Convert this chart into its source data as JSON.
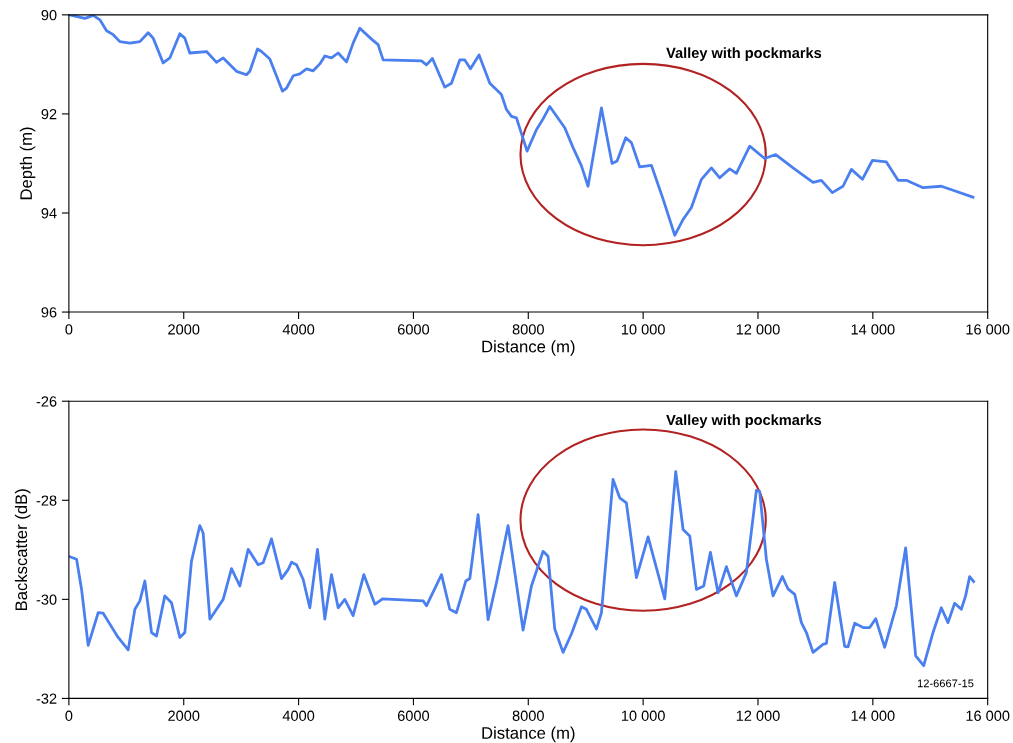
{
  "chart_data": [
    {
      "type": "line",
      "xlabel": "Distance (m)",
      "ylabel": "Depth (m)",
      "xlim": [
        0,
        16000
      ],
      "ylim": [
        96,
        90
      ],
      "xticks": [
        0,
        2000,
        4000,
        6000,
        8000,
        {
          "value": 10000,
          "label": "10 000"
        },
        {
          "value": 12000,
          "label": "12 000"
        },
        {
          "value": 14000,
          "label": "14 000"
        },
        {
          "value": 16000,
          "label": "16 000"
        }
      ],
      "yticks": [
        90,
        92,
        94,
        96
      ],
      "marker": "none",
      "line_style": "solid",
      "annotations": [
        "Valley with pockmarks"
      ],
      "series": [
        {
          "color": "#4a7ff0",
          "x": [
            17,
            279,
            423,
            540,
            656,
            772,
            888,
            1062,
            1236,
            1381,
            1468,
            1642,
            1758,
            1932,
            2019,
            2106,
            2397,
            2571,
            2687,
            2919,
            3093,
            3151,
            3285,
            3354,
            3499,
            3720,
            3790,
            3906,
            4022,
            4138,
            4254,
            4370,
            4457,
            4573,
            4689,
            4834,
            4950,
            5066,
            5270,
            5385,
            5472,
            6140,
            6227,
            6331,
            6546,
            6662,
            6807,
            6894,
            6993,
            7143,
            7330,
            7533,
            7620,
            7707,
            7794,
            7979,
            8142,
            8258,
            8374,
            8635,
            8780,
            8926,
            9041,
            9274,
            9459,
            9546,
            9697,
            9796,
            9941,
            10145,
            10348,
            10551,
            10696,
            10841,
            11015,
            11189,
            11334,
            11508,
            11624,
            11856,
            12117,
            12309,
            12611,
            12959,
            13104,
            13295,
            13481,
            13627,
            13818,
            13992,
            14236,
            14439,
            14584,
            14874,
            15193,
            15396,
            15744
          ],
          "values": [
            90.0,
            90.07,
            90.01,
            90.1,
            90.32,
            90.4,
            90.54,
            90.57,
            90.54,
            90.36,
            90.47,
            90.97,
            90.87,
            90.38,
            90.47,
            90.77,
            90.74,
            90.96,
            90.87,
            91.14,
            91.21,
            91.14,
            90.69,
            90.74,
            90.89,
            91.54,
            91.48,
            91.23,
            91.19,
            91.09,
            91.13,
            90.99,
            90.83,
            90.87,
            90.77,
            90.95,
            90.57,
            90.27,
            90.49,
            90.6,
            90.91,
            90.93,
            91.01,
            90.88,
            91.46,
            91.38,
            90.91,
            90.91,
            91.09,
            90.81,
            91.38,
            91.61,
            91.91,
            92.05,
            92.08,
            92.75,
            92.32,
            92.1,
            91.85,
            92.28,
            92.68,
            93.05,
            93.46,
            91.88,
            93.0,
            92.95,
            92.48,
            92.58,
            93.07,
            93.04,
            93.72,
            94.45,
            94.13,
            93.89,
            93.32,
            93.09,
            93.29,
            93.11,
            93.2,
            92.65,
            92.9,
            92.82,
            93.09,
            93.38,
            93.34,
            93.59,
            93.46,
            93.12,
            93.32,
            92.94,
            92.97,
            93.34,
            93.34,
            93.49,
            93.46,
            93.54,
            93.68
          ]
        }
      ]
    },
    {
      "type": "line",
      "xlabel": "Distance (m)",
      "ylabel": "Backscatter (dB)",
      "xlim": [
        0,
        16000
      ],
      "ylim": [
        -32,
        -26
      ],
      "xticks": [
        0,
        2000,
        4000,
        6000,
        8000,
        {
          "value": 10000,
          "label": "10 000"
        },
        {
          "value": 12000,
          "label": "12 000"
        },
        {
          "value": 14000,
          "label": "14 000"
        },
        {
          "value": 16000,
          "label": "16 000"
        }
      ],
      "yticks": [
        -32,
        -30,
        -28,
        -26
      ],
      "marker": "none",
      "line_style": "solid",
      "annotations": [
        "Valley with pockmarks",
        "12-6667-15"
      ],
      "series": [
        {
          "color": "#4a7ff0",
          "x": [
            17,
            134,
            221,
            336,
            510,
            597,
            714,
            858,
            1033,
            1149,
            1236,
            1323,
            1439,
            1526,
            1671,
            1787,
            1932,
            2019,
            2135,
            2280,
            2338,
            2455,
            2571,
            2687,
            2832,
            2977,
            3122,
            3296,
            3383,
            3528,
            3703,
            3818,
            3877,
            3964,
            4080,
            4196,
            4329,
            4457,
            4573,
            4689,
            4805,
            4950,
            5136,
            5328,
            5461,
            6169,
            6227,
            6489,
            6633,
            6749,
            6912,
            6982,
            7126,
            7300,
            7446,
            7648,
            7909,
            8055,
            8258,
            8345,
            8461,
            8606,
            8751,
            8926,
            9012,
            9187,
            9274,
            9476,
            9592,
            9708,
            9883,
            10086,
            10377,
            10568,
            10696,
            10812,
            10928,
            11055,
            11172,
            11305,
            11450,
            11624,
            11798,
            11972,
            12030,
            12146,
            12262,
            12425,
            12523,
            12640,
            12756,
            12843,
            12959,
            13133,
            13191,
            13336,
            13510,
            13568,
            13684,
            13829,
            13946,
            14050,
            14206,
            14410,
            14572,
            14746,
            14886,
            15048,
            15193,
            15309,
            15425,
            15541,
            15616,
            15686,
            15756
          ],
          "values": [
            -29.14,
            -29.19,
            -29.8,
            -30.93,
            -30.27,
            -30.28,
            -30.5,
            -30.77,
            -31.02,
            -30.2,
            -30.03,
            -29.63,
            -30.67,
            -30.74,
            -29.93,
            -30.07,
            -30.77,
            -30.67,
            -29.23,
            -28.51,
            -28.66,
            -30.4,
            -30.2,
            -30.0,
            -29.38,
            -29.73,
            -28.99,
            -29.3,
            -29.26,
            -28.78,
            -29.58,
            -29.4,
            -29.25,
            -29.3,
            -29.6,
            -30.17,
            -28.99,
            -30.4,
            -29.5,
            -30.17,
            -30.0,
            -30.33,
            -29.5,
            -30.1,
            -29.99,
            -30.03,
            -30.13,
            -29.5,
            -30.2,
            -30.27,
            -29.63,
            -29.58,
            -28.29,
            -30.41,
            -29.66,
            -28.51,
            -30.62,
            -29.73,
            -29.03,
            -29.13,
            -30.6,
            -31.07,
            -30.7,
            -30.15,
            -30.2,
            -30.6,
            -30.27,
            -27.58,
            -27.95,
            -28.05,
            -29.56,
            -28.74,
            -29.99,
            -27.42,
            -28.59,
            -28.72,
            -29.8,
            -29.73,
            -29.05,
            -29.87,
            -29.34,
            -29.93,
            -29.46,
            -27.8,
            -27.82,
            -29.19,
            -29.93,
            -29.54,
            -29.79,
            -29.9,
            -30.47,
            -30.67,
            -31.07,
            -30.91,
            -30.89,
            -29.66,
            -30.95,
            -30.96,
            -30.48,
            -30.57,
            -30.57,
            -30.39,
            -30.97,
            -30.13,
            -28.96,
            -31.14,
            -31.34,
            -30.67,
            -30.17,
            -30.47,
            -30.08,
            -30.2,
            -29.93,
            -29.54,
            -29.64
          ]
        }
      ]
    }
  ]
}
